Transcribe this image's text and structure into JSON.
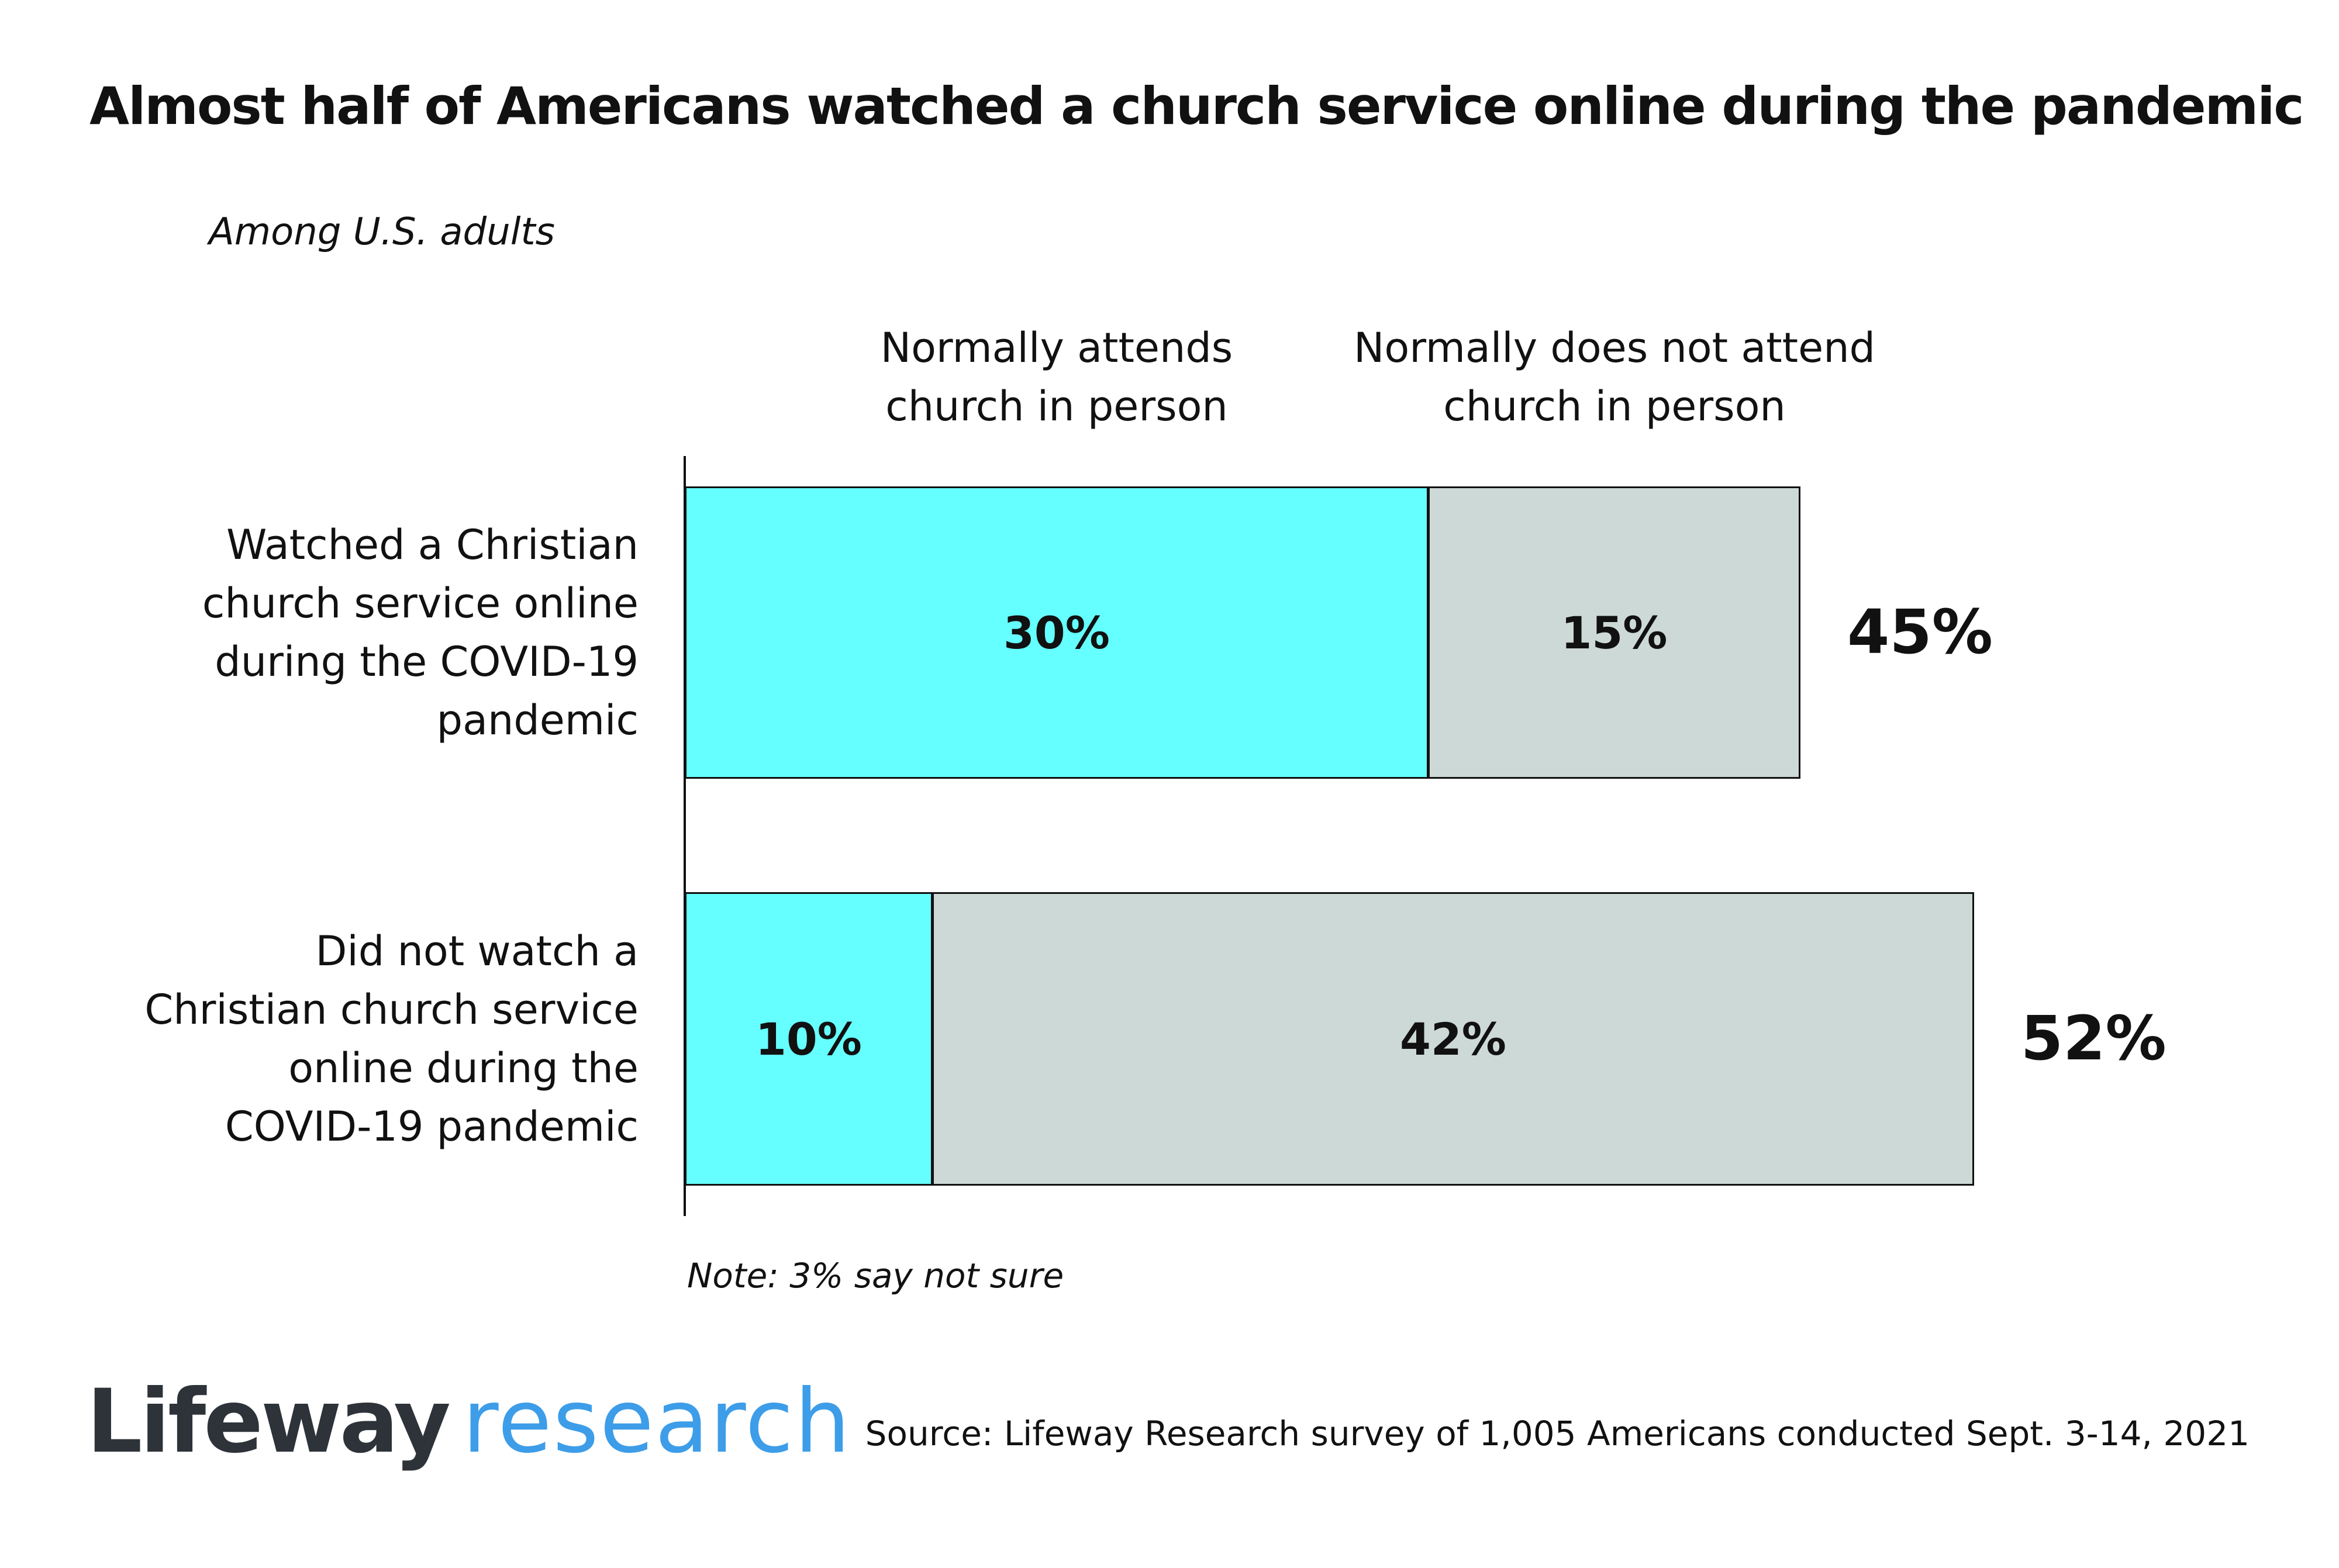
{
  "chart_data": {
    "type": "bar",
    "orientation": "horizontal",
    "stacked": true,
    "title": "Almost half of Americans watched a church service online during the pandemic",
    "subtitle": "Among U.S. adults",
    "categories": [
      "Watched a Christian church service online during the COVID-19 pandemic",
      "Did not watch a Christian church service online during the COVID-19 pandemic"
    ],
    "category_lines": [
      [
        "Watched a Christian",
        "church service online",
        "during the COVID-19",
        "pandemic"
      ],
      [
        "Did not watch a",
        "Christian church service",
        "online during the",
        "COVID-19 pandemic"
      ]
    ],
    "series": [
      {
        "name": "Normally attends church in person",
        "name_lines": [
          "Normally attends",
          "church in person"
        ],
        "color": "#66ffff",
        "values": [
          30,
          10
        ]
      },
      {
        "name": "Normally does not attend church in person",
        "name_lines": [
          "Normally does not attend",
          "church in person"
        ],
        "color": "#cdd9d7",
        "values": [
          15,
          42
        ]
      }
    ],
    "totals": [
      45,
      52
    ],
    "value_suffix": "%",
    "xlim": [
      0,
      100
    ],
    "grid": false,
    "legend": "column headers above bars",
    "xlabel": "",
    "ylabel": ""
  },
  "note": "Note: 3% say not sure",
  "logo": {
    "word1": "Lifeway",
    "word2": "research"
  },
  "source": "Source: Lifeway Research survey of 1,005 Americans conducted Sept. 3-14, 2021"
}
